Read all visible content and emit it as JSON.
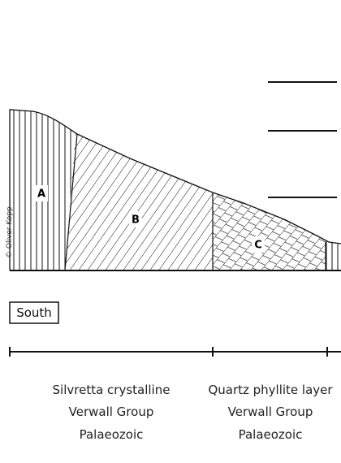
{
  "copyright": "© Oliver Kopp",
  "labels": {
    "a": "A",
    "b": "B",
    "c": "C"
  },
  "south": "South",
  "columns": [
    {
      "lines": [
        "Silvretta crystalline",
        "Verwall Group",
        "Palaeozoic"
      ]
    },
    {
      "lines": [
        "Quartz phyllite layer",
        "Verwall Group",
        "Palaeozoic"
      ]
    }
  ]
}
